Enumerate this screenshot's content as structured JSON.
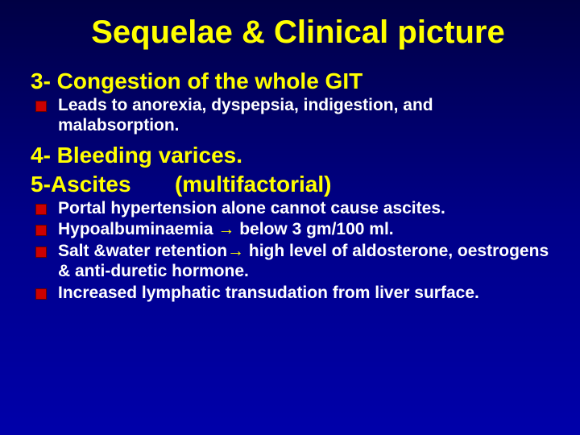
{
  "colors": {
    "background_top": "#000044",
    "background_mid": "#000088",
    "background_bottom": "#0000aa",
    "title_color": "#ffff00",
    "heading_color": "#ffff00",
    "body_text_color": "#ffffff",
    "bullet_color": "#cc0000",
    "arrow_color": "#ffff00"
  },
  "typography": {
    "font_family": "Arial",
    "title_fontsize": 40,
    "heading_fontsize": 28,
    "body_fontsize": 21,
    "weight": "bold"
  },
  "title": "Sequelae & Clinical picture",
  "section1": {
    "heading": "3- Congestion of the whole GIT",
    "bullets": [
      "Leads to anorexia, dyspepsia, indigestion, and malabsorption."
    ]
  },
  "section2": {
    "heading_a": "4- Bleeding varices.",
    "heading_b": "5-Ascites       (multifactorial)",
    "bullets": [
      {
        "pre": "Portal hypertension alone cannot cause ascites."
      },
      {
        "pre": "Hypoalbuminaemia  ",
        "arrow": "→",
        "post": " below 3 gm/100 ml."
      },
      {
        "pre": "Salt &water retention",
        "arrow": "→",
        "post": " high level of aldosterone, oestrogens & anti-duretic hormone."
      },
      {
        "pre": "Increased lymphatic transudation from liver surface."
      }
    ]
  }
}
